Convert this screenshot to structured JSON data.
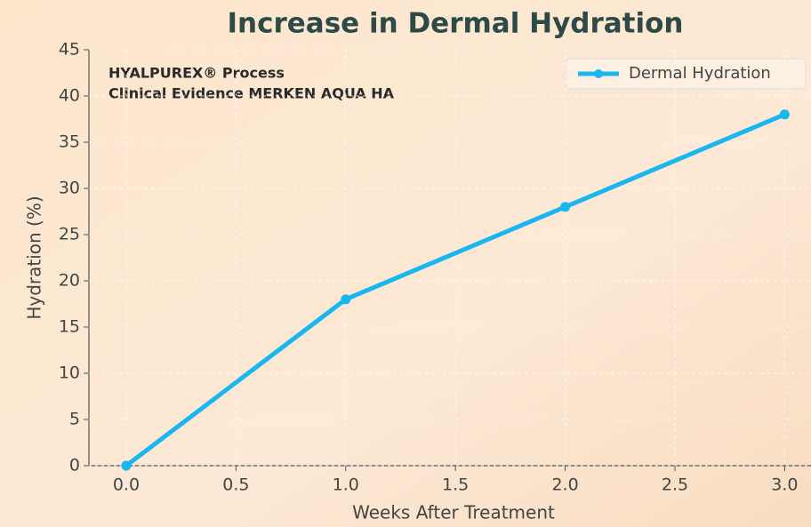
{
  "chart_data": {
    "type": "line",
    "title": "Increase in Dermal Hydration",
    "annotations": [
      "HYALPUREX® Process",
      "Clinical Evidence MERKEN AQUA HA"
    ],
    "x_label": "Weeks After Treatment",
    "y_label": "Hydration (%)",
    "x": [
      0,
      1,
      2,
      3
    ],
    "series": [
      {
        "name": "Dermal Hydration",
        "color": "#19b6f0",
        "values": [
          0,
          18,
          28,
          38
        ]
      }
    ],
    "xlim": [
      -0.17,
      3.12
    ],
    "ylim": [
      0,
      45
    ],
    "xticks": [
      {
        "value": 0,
        "label": "0.0"
      },
      0.5,
      {
        "value": 1,
        "label": "1.0"
      },
      1.5,
      {
        "value": 2,
        "label": "2.0"
      },
      2.5,
      {
        "value": 3,
        "label": "3.0"
      }
    ],
    "yticks": [
      0,
      5,
      10,
      15,
      20,
      25,
      30,
      35,
      40,
      45
    ],
    "grid": true,
    "legend": "upper right"
  }
}
